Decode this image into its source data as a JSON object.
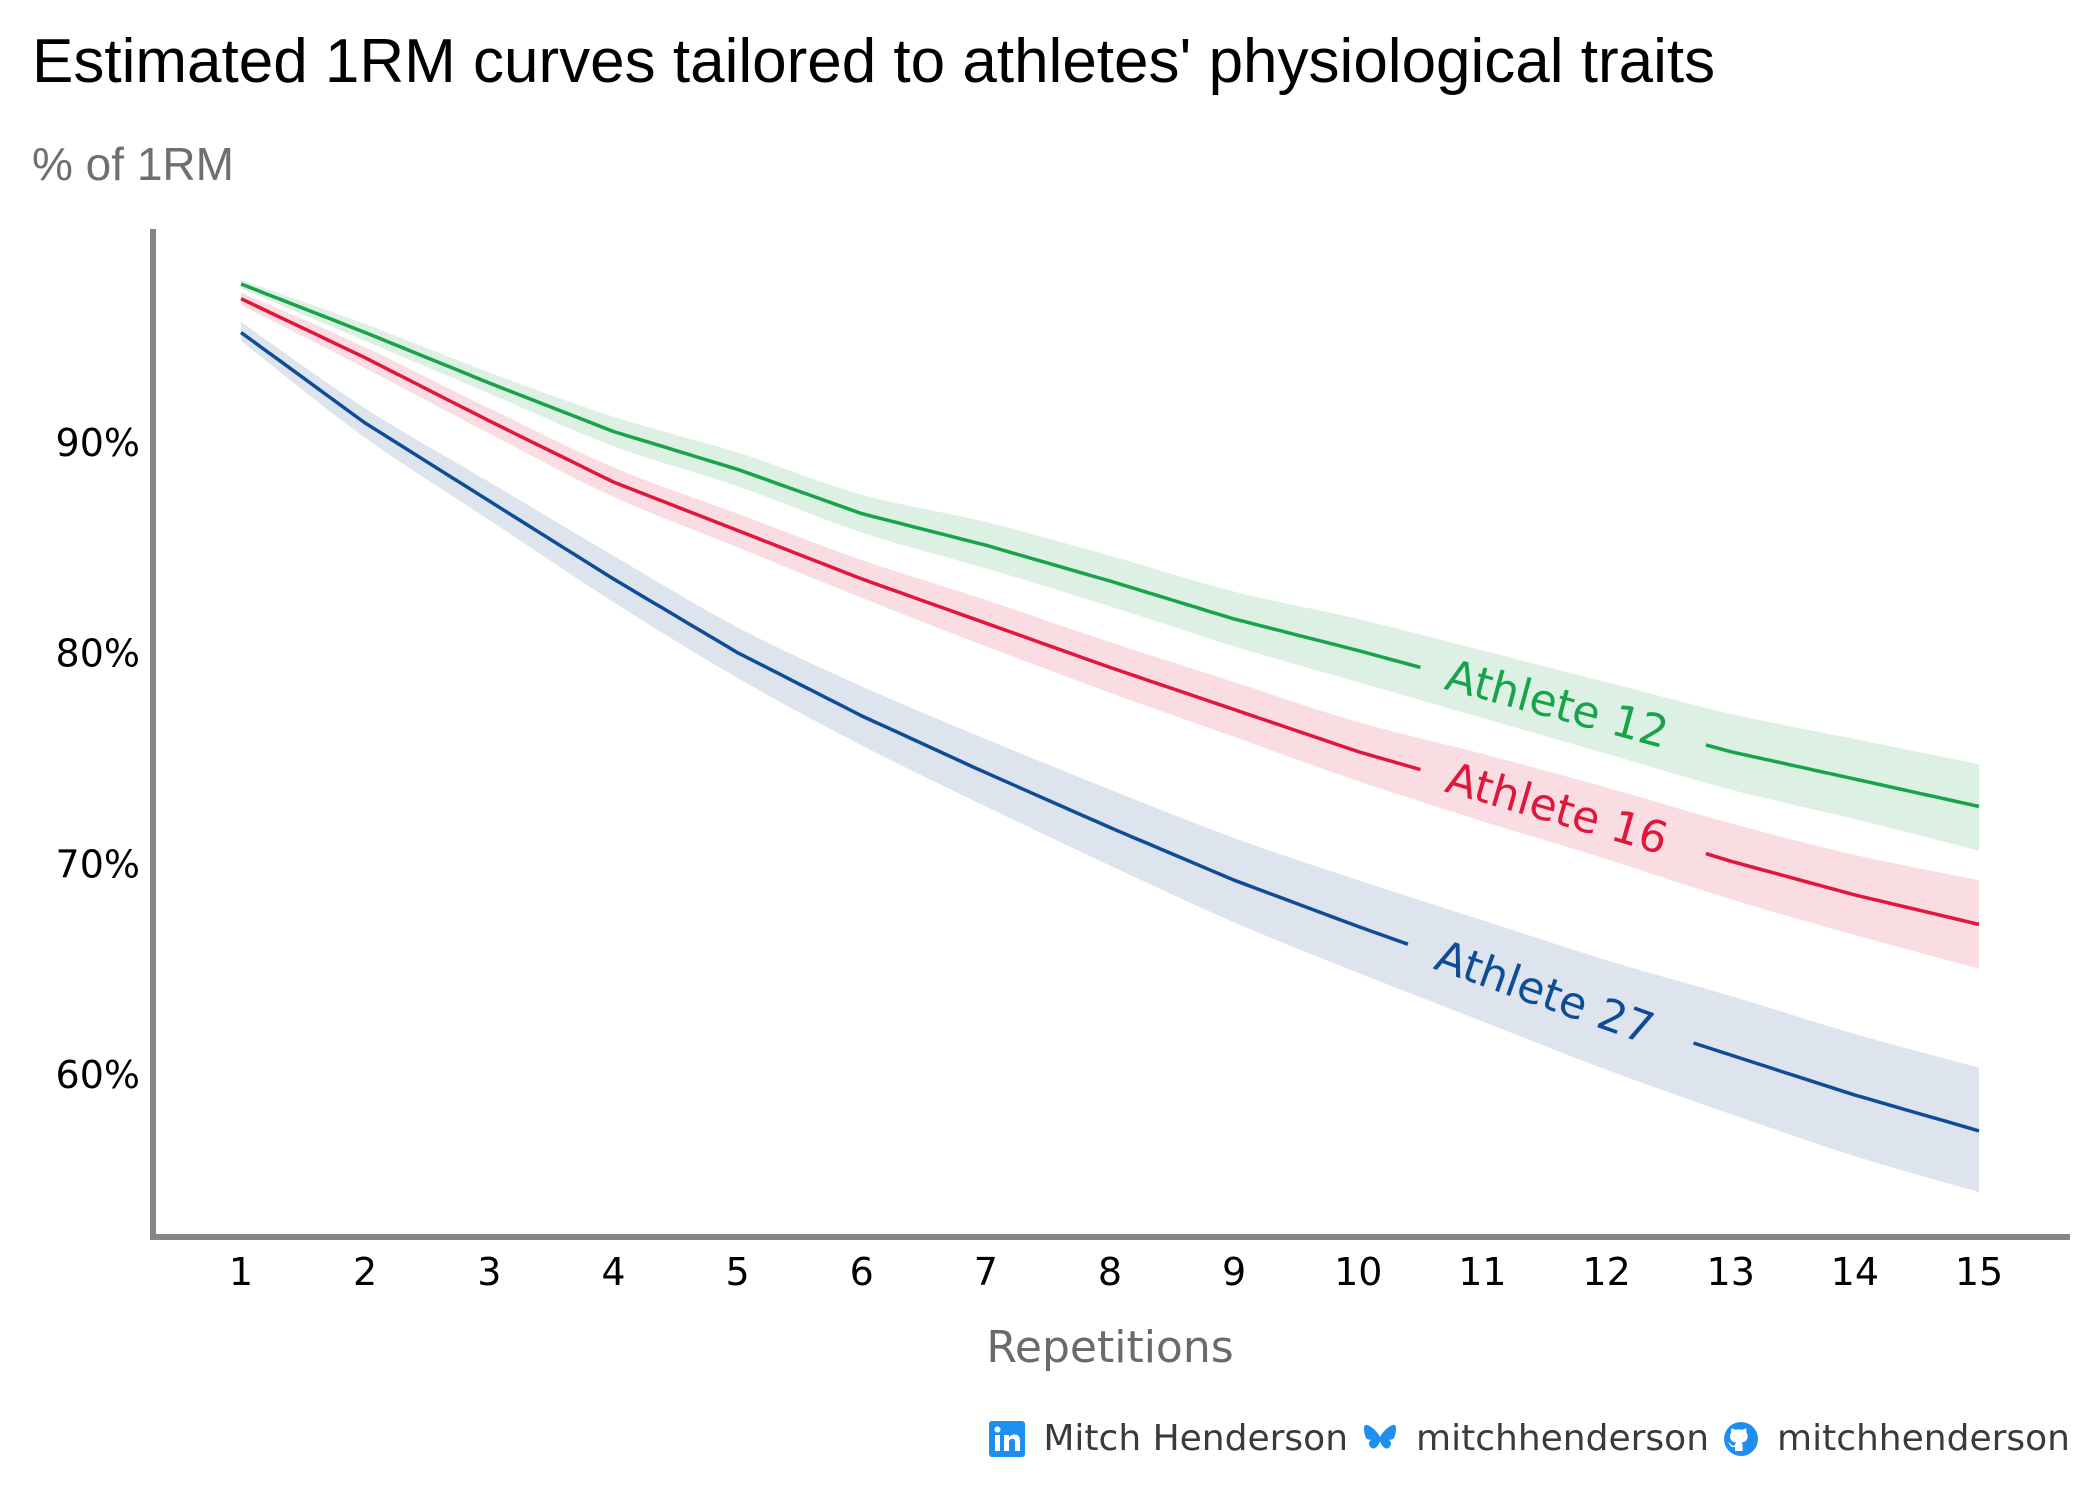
{
  "chart_data": {
    "type": "line",
    "title": "Estimated 1RM curves tailored to athletes' physiological traits",
    "subtitle": "% of 1RM",
    "xlabel": "Repetitions",
    "ylabel": "% of 1RM",
    "x": [
      1,
      2,
      3,
      4,
      5,
      6,
      7,
      8,
      9,
      10,
      11,
      12,
      13,
      14,
      15
    ],
    "x_ticks": [
      "1",
      "2",
      "3",
      "4",
      "5",
      "6",
      "7",
      "8",
      "9",
      "10",
      "11",
      "12",
      "13",
      "14",
      "15"
    ],
    "y_ticks": [
      {
        "value": 90,
        "label": "90%"
      },
      {
        "value": 80,
        "label": "80%"
      },
      {
        "value": 70,
        "label": "70%"
      },
      {
        "value": 60,
        "label": "60%"
      }
    ],
    "xlim": [
      0.3,
      15.7
    ],
    "ylim": [
      52.3,
      105.9
    ],
    "grid": false,
    "legend": "direct labels on lines",
    "series": [
      {
        "name": "Athlete 12",
        "color": "#17a34a",
        "band_color": "#dcf0e3",
        "label_at": 11.6,
        "values": [
          97.5,
          95.2,
          92.8,
          90.5,
          88.7,
          86.6,
          85.1,
          83.4,
          81.6,
          80.1,
          78.5,
          76.9,
          75.3,
          74.0,
          72.7
        ],
        "upper": [
          97.7,
          95.6,
          93.3,
          91.2,
          89.5,
          87.5,
          86.2,
          84.6,
          82.9,
          81.6,
          80.1,
          78.6,
          77.1,
          75.9,
          74.7
        ],
        "lower": [
          97.3,
          94.8,
          92.3,
          89.8,
          87.9,
          85.7,
          84.0,
          82.2,
          80.3,
          78.6,
          76.9,
          75.2,
          73.5,
          72.1,
          70.6
        ]
      },
      {
        "name": "Athlete 16",
        "color": "#e0163a",
        "band_color": "#fadde2",
        "label_at": 11.6,
        "values": [
          96.8,
          94.0,
          91.0,
          88.1,
          85.8,
          83.5,
          81.4,
          79.3,
          77.3,
          75.3,
          73.6,
          71.9,
          70.1,
          68.5,
          67.1
        ],
        "upper": [
          97.1,
          94.5,
          91.6,
          88.8,
          86.6,
          84.4,
          82.5,
          80.5,
          78.6,
          76.7,
          75.2,
          73.6,
          71.9,
          70.4,
          69.2
        ],
        "lower": [
          96.5,
          93.5,
          90.4,
          87.4,
          85.0,
          82.6,
          80.3,
          78.1,
          76.0,
          73.9,
          72.0,
          70.2,
          68.3,
          66.6,
          65.0
        ]
      },
      {
        "name": "Athlete 27",
        "color": "#0f4c96",
        "band_color": "#dde4ee",
        "label_at": 11.5,
        "values": [
          95.2,
          90.9,
          87.2,
          83.5,
          80.0,
          77.0,
          74.3,
          71.7,
          69.2,
          67.0,
          64.9,
          62.8,
          60.9,
          59.0,
          57.3
        ],
        "upper": [
          95.7,
          91.6,
          88.1,
          84.6,
          81.2,
          78.4,
          75.9,
          73.5,
          71.2,
          69.2,
          67.3,
          65.4,
          63.7,
          61.9,
          60.3
        ],
        "lower": [
          94.8,
          90.2,
          86.3,
          82.4,
          78.8,
          75.6,
          72.7,
          69.9,
          67.2,
          64.8,
          62.5,
          60.2,
          58.1,
          56.1,
          54.4
        ]
      }
    ]
  },
  "footer": {
    "items": [
      {
        "icon": "linkedin-icon",
        "text": "Mitch Henderson"
      },
      {
        "icon": "bluesky-icon",
        "text": "mitchhenderson"
      },
      {
        "icon": "github-icon",
        "text": "mitchhenderson"
      }
    ],
    "icon_color": "#1f8ef1"
  }
}
